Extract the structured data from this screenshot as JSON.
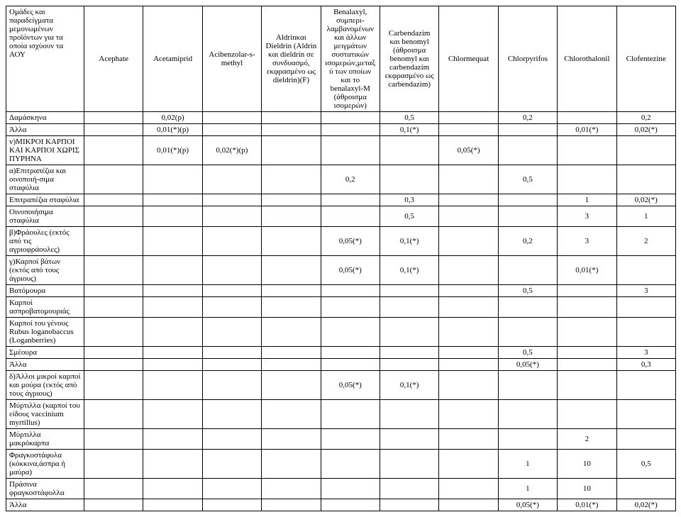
{
  "colors": {
    "bg": "#ffffff",
    "border": "#000000",
    "text": "#000000"
  },
  "font": {
    "family": "Times New Roman",
    "size_pt": 9
  },
  "columns": [
    "Ομάδες και παραδείγματα μεμονωμένων προϊόντων για τα οποία ισχύουν τα ΑΟΥ",
    "Acephate",
    "Acetamiprid",
    "Acibenzolar-s-methyl",
    "Aldrinκαι Dieldrin (Aldrin και dieldrin σε συνδυασμό, εκφρασμένο ως dieldrin)(F)",
    "Benalaxyl, συμπερι-λαμβανομένων και άλλων μειγμάτων συστατικών ισομερών,μεταξύ των οποίων και το benalaxyl-M (άθροισμα ισομερών)",
    "Carbendazim και benomyl (άθροισμα benomyl και carbendazim εκφρασμένο ως carbendazim)",
    "Chlormequat",
    "Chlorpyrifos",
    "Chlorothalonil",
    "Clofentezine"
  ],
  "rows": [
    {
      "label": "Δαμάσκηνα",
      "cells": [
        "",
        "0,02(p)",
        "",
        "",
        "",
        "0,5",
        "",
        "0,2",
        "",
        "0,2"
      ]
    },
    {
      "label": "Άλλα",
      "cells": [
        "",
        "0,01(*)(p)",
        "",
        "",
        "",
        "0,1(*)",
        "",
        "",
        "0,01(*)",
        "0,02(*)"
      ]
    },
    {
      "label": "v)ΜΙΚΡΟΙ ΚΑΡΠΟΙ ΚΑΙ ΚΑΡΠΟΙ ΧΩΡΙΣ ΠΥΡΗΝΑ",
      "cells": [
        "",
        "0,01(*)(p)",
        "0,02(*)(p)",
        "",
        "",
        "",
        "0,05(*)",
        "",
        "",
        ""
      ]
    },
    {
      "label": "α)Επιτραπέζια και οινοποιή-σιμα σταφύλια",
      "cells": [
        "",
        "",
        "",
        "",
        "0,2",
        "",
        "",
        "0,5",
        "",
        ""
      ]
    },
    {
      "label": "Επιτραπέζια σταφύλια",
      "cells": [
        "",
        "",
        "",
        "",
        "",
        "0,3",
        "",
        "",
        "1",
        "0,02(*)"
      ]
    },
    {
      "label": "Οινοποιήσιμα σταφύλια",
      "cells": [
        "",
        "",
        "",
        "",
        "",
        "0,5",
        "",
        "",
        "3",
        "1"
      ]
    },
    {
      "label": "β)Φράουλες (εκτός από τις αγριοφράουλες)",
      "cells": [
        "",
        "",
        "",
        "",
        "0,05(*)",
        "0,1(*)",
        "",
        "0,2",
        "3",
        "2"
      ]
    },
    {
      "label": "γ)Καρποί βάτων (εκτός από τους άγριους)",
      "cells": [
        "",
        "",
        "",
        "",
        "0,05(*)",
        "0,1(*)",
        "",
        "",
        "0,01(*)",
        ""
      ]
    },
    {
      "label": "Βατόμουρα",
      "cells": [
        "",
        "",
        "",
        "",
        "",
        "",
        "",
        "0,5",
        "",
        "3"
      ]
    },
    {
      "label": "Καρποί ασπροβατομουριάς",
      "cells": [
        "",
        "",
        "",
        "",
        "",
        "",
        "",
        "",
        "",
        ""
      ]
    },
    {
      "label": "Καρποί του γένους Rubus loganobaccus (Loganberries)",
      "cells": [
        "",
        "",
        "",
        "",
        "",
        "",
        "",
        "",
        "",
        ""
      ]
    },
    {
      "label": "Σμέουρα",
      "cells": [
        "",
        "",
        "",
        "",
        "",
        "",
        "",
        "0,5",
        "",
        "3"
      ]
    },
    {
      "label": "Άλλα",
      "cells": [
        "",
        "",
        "",
        "",
        "",
        "",
        "",
        "0,05(*)",
        "",
        "0,3"
      ]
    },
    {
      "label": "δ)Άλλοι μικροί καρποί και μούρα (εκτός από τους άγριους)",
      "cells": [
        "",
        "",
        "",
        "",
        "0,05(*)",
        "0,1(*)",
        "",
        "",
        "",
        ""
      ]
    },
    {
      "label": "Μύρτιλλα (καρποί του είδους vaccinium myrtillus)",
      "cells": [
        "",
        "",
        "",
        "",
        "",
        "",
        "",
        "",
        "",
        ""
      ]
    },
    {
      "label": "Μύρτιλλα μακρόκαρπα",
      "cells": [
        "",
        "",
        "",
        "",
        "",
        "",
        "",
        "",
        "2",
        ""
      ]
    },
    {
      "label": "Φραγκοστάφυλα (κόκκινα,άσπρα ή μαύρα)",
      "cells": [
        "",
        "",
        "",
        "",
        "",
        "",
        "",
        "1",
        "10",
        "0,5"
      ]
    },
    {
      "label": "Πράσινα φραγκοστάφυλλα",
      "cells": [
        "",
        "",
        "",
        "",
        "",
        "",
        "",
        "1",
        "10",
        ""
      ]
    },
    {
      "label": "Άλλα",
      "cells": [
        "",
        "",
        "",
        "",
        "",
        "",
        "",
        "0,05(*)",
        "0,01(*)",
        "0,02(*)"
      ]
    }
  ]
}
